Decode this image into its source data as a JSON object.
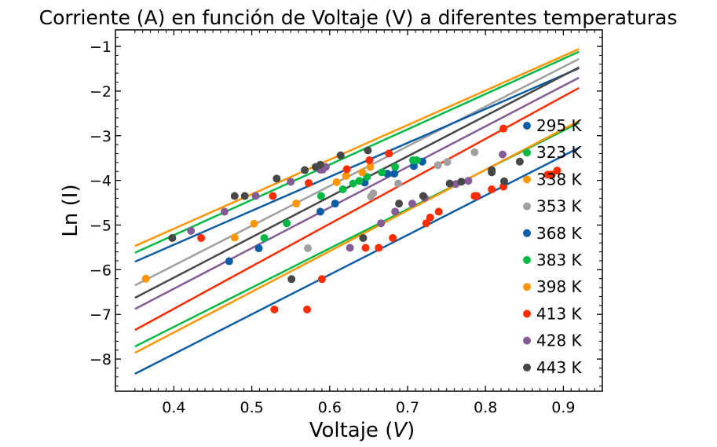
{
  "chart_data": {
    "type": "scatter",
    "title": "Corriente (A) en función de Voltaje (V) a diferentes temperaturas",
    "xlabel_prefix": "Voltaje (",
    "xlabel_var": "V",
    "xlabel_suffix": ")",
    "ylabel": "Ln (I)",
    "xlim": [
      0.325,
      0.95
    ],
    "ylim": [
      -8.72,
      -0.63
    ],
    "x_ticks": [
      0.4,
      0.5,
      0.6,
      0.7,
      0.8,
      0.9
    ],
    "x_tick_labels": [
      "0.4",
      "0.5",
      "0.6",
      "0.7",
      "0.8",
      "0.9"
    ],
    "y_ticks": [
      -8,
      -7,
      -6,
      -5,
      -4,
      -3,
      -2,
      -1
    ],
    "y_tick_labels": [
      "−8",
      "−7",
      "−6",
      "−5",
      "−4",
      "−3",
      "−2",
      "−1"
    ],
    "legend_position": "right",
    "fit_x_range": [
      0.35,
      0.92
    ],
    "series": [
      {
        "name": "295 K",
        "color": "#0C5DA5",
        "fit": [
          [
            0.35,
            -8.33
          ],
          [
            0.92,
            -3.27
          ]
        ],
        "points": [
          [
            0.471,
            -5.81
          ],
          [
            0.509,
            -5.52
          ],
          [
            0.588,
            -4.7
          ],
          [
            0.607,
            -4.52
          ],
          [
            0.645,
            -4.05
          ],
          [
            0.674,
            -3.85
          ],
          [
            0.683,
            -3.85
          ],
          [
            0.708,
            -3.68
          ],
          [
            0.719,
            -3.58
          ]
        ]
      },
      {
        "name": "323 K",
        "color": "#00B945",
        "fit": [
          [
            0.35,
            -7.72
          ],
          [
            0.92,
            -2.71
          ]
        ],
        "points": [
          [
            0.516,
            -5.29
          ],
          [
            0.545,
            -4.96
          ],
          [
            0.589,
            -4.35
          ],
          [
            0.617,
            -4.2
          ],
          [
            0.63,
            -4.07
          ],
          [
            0.638,
            -4.01
          ],
          [
            0.648,
            -3.92
          ],
          [
            0.667,
            -3.82
          ],
          [
            0.684,
            -3.7
          ],
          [
            0.707,
            -3.55
          ],
          [
            0.712,
            -3.55
          ]
        ]
      },
      {
        "name": "338 K",
        "color": "#FF9500",
        "fit": [
          [
            0.35,
            -7.86
          ],
          [
            0.92,
            -2.67
          ]
        ],
        "points": [
          [
            0.364,
            -6.2
          ],
          [
            0.478,
            -5.28
          ],
          [
            0.503,
            -4.97
          ],
          [
            0.557,
            -4.52
          ],
          [
            0.609,
            -4.04
          ],
          [
            0.621,
            -3.9
          ],
          [
            0.642,
            -3.82
          ],
          [
            0.652,
            -3.7
          ]
        ]
      },
      {
        "name": "353 K",
        "color": "#A0A0A0",
        "fit": [
          [
            0.35,
            -6.35
          ],
          [
            0.92,
            -1.28
          ]
        ],
        "points": [
          [
            0.572,
            -5.52
          ],
          [
            0.653,
            -4.36
          ],
          [
            0.656,
            -4.29
          ],
          [
            0.688,
            -4.07
          ],
          [
            0.739,
            -3.66
          ],
          [
            0.751,
            -3.59
          ],
          [
            0.786,
            -3.37
          ]
        ]
      },
      {
        "name": "368 K",
        "color": "#0C5DA5",
        "fit": [
          [
            0.35,
            -5.82
          ],
          [
            0.92,
            -1.49
          ]
        ],
        "points": []
      },
      {
        "name": "383 K",
        "color": "#00B945",
        "fit": [
          [
            0.35,
            -5.62
          ],
          [
            0.92,
            -1.12
          ]
        ],
        "points": []
      },
      {
        "name": "398 K",
        "color": "#FF9500",
        "fit": [
          [
            0.35,
            -5.47
          ],
          [
            0.92,
            -1.06
          ]
        ],
        "points": []
      },
      {
        "name": "413 K",
        "color": "#FF2C00",
        "fit": [
          [
            0.35,
            -7.35
          ],
          [
            0.92,
            -1.93
          ]
        ],
        "points": [
          [
            0.435,
            -5.29
          ],
          [
            0.527,
            -4.35
          ],
          [
            0.529,
            -6.89
          ],
          [
            0.571,
            -6.89
          ],
          [
            0.573,
            -4.06
          ],
          [
            0.59,
            -6.21
          ],
          [
            0.622,
            -3.75
          ],
          [
            0.646,
            -5.51
          ],
          [
            0.651,
            -3.55
          ],
          [
            0.663,
            -5.51
          ],
          [
            0.676,
            -3.4
          ],
          [
            0.681,
            -5.29
          ],
          [
            0.724,
            -4.96
          ],
          [
            0.729,
            -4.83
          ],
          [
            0.74,
            -4.7
          ],
          [
            0.786,
            -4.35
          ],
          [
            0.789,
            -4.35
          ],
          [
            0.808,
            -4.2
          ],
          [
            0.823,
            -4.14
          ],
          [
            0.823,
            -2.84
          ],
          [
            0.88,
            -3.87
          ],
          [
            0.885,
            -3.87
          ],
          [
            0.892,
            -3.78
          ]
        ]
      },
      {
        "name": "428 K",
        "color": "#845B97",
        "fit": [
          [
            0.35,
            -6.88
          ],
          [
            0.92,
            -1.7
          ]
        ],
        "points": [
          [
            0.422,
            -5.13
          ],
          [
            0.465,
            -4.7
          ],
          [
            0.505,
            -4.35
          ],
          [
            0.55,
            -4.03
          ],
          [
            0.588,
            -3.76
          ],
          [
            0.591,
            -3.76
          ],
          [
            0.595,
            -3.7
          ],
          [
            0.626,
            -5.51
          ],
          [
            0.666,
            -4.96
          ],
          [
            0.684,
            -4.7
          ],
          [
            0.706,
            -4.52
          ],
          [
            0.722,
            -4.39
          ],
          [
            0.762,
            -4.08
          ],
          [
            0.778,
            -4.01
          ],
          [
            0.822,
            -3.42
          ]
        ]
      },
      {
        "name": "443 K",
        "color": "#474747",
        "fit": [
          [
            0.35,
            -6.63
          ],
          [
            0.92,
            -1.47
          ]
        ],
        "points": [
          [
            0.398,
            -5.29
          ],
          [
            0.478,
            -4.35
          ],
          [
            0.491,
            -4.35
          ],
          [
            0.532,
            -3.96
          ],
          [
            0.551,
            -6.21
          ],
          [
            0.568,
            -3.77
          ],
          [
            0.582,
            -3.7
          ],
          [
            0.588,
            -3.65
          ],
          [
            0.614,
            -3.44
          ],
          [
            0.643,
            -5.29
          ],
          [
            0.649,
            -3.33
          ],
          [
            0.689,
            -4.52
          ],
          [
            0.72,
            -4.35
          ],
          [
            0.754,
            -4.07
          ],
          [
            0.769,
            -4.03
          ],
          [
            0.808,
            -3.77
          ],
          [
            0.808,
            -3.82
          ],
          [
            0.824,
            -4.02
          ],
          [
            0.844,
            -3.58
          ]
        ]
      }
    ]
  }
}
